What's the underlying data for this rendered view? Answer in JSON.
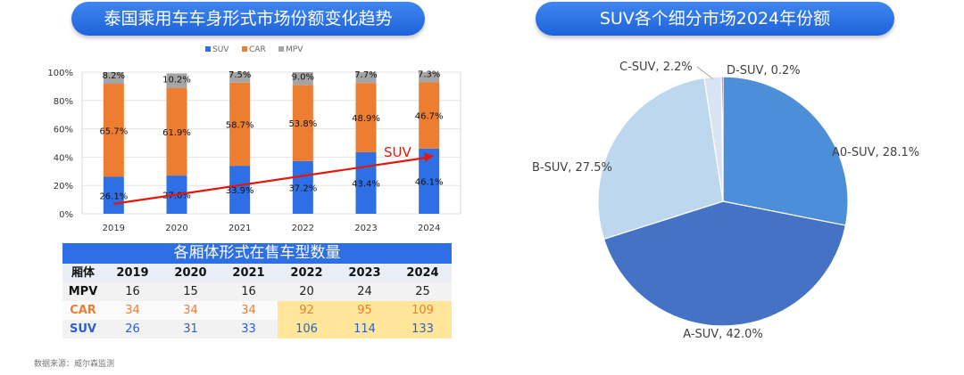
{
  "titles": {
    "left": "泰国乘用车车身形式市场份额变化趋势",
    "right": "SUV各个细分市场2024年份额"
  },
  "chart_data": [
    {
      "type": "bar",
      "stacked": true,
      "categories": [
        "2019",
        "2020",
        "2021",
        "2022",
        "2023",
        "2024"
      ],
      "series": [
        {
          "name": "SUV",
          "values": [
            26.1,
            27.0,
            33.9,
            37.2,
            43.4,
            46.1
          ],
          "labels": [
            "26.1%",
            "27.0%",
            "33.9%",
            "37.2%",
            "43.4%",
            "46.1%"
          ],
          "color": "#2f6fe6"
        },
        {
          "name": "CAR",
          "values": [
            65.7,
            61.9,
            58.7,
            53.8,
            48.9,
            46.7
          ],
          "labels": [
            "65.7%",
            "61.9%",
            "58.7%",
            "53.8%",
            "48.9%",
            "46.7%"
          ],
          "color": "#ed7d31"
        },
        {
          "name": "MPV",
          "values": [
            8.2,
            10.2,
            7.5,
            9.0,
            7.7,
            7.3
          ],
          "labels": [
            "8.2%",
            "10.2%",
            "7.5%",
            "9.0%",
            "7.7%",
            "7.3%"
          ],
          "color": "#a5a5a5"
        }
      ],
      "ylim": [
        0,
        100
      ],
      "yticks": [
        "0%",
        "20%",
        "40%",
        "60%",
        "80%",
        "100%"
      ],
      "legend": "top",
      "annotation": "SUV",
      "trend_arrow": {
        "from_category": "2019",
        "to_category": "2024",
        "from_value": 7,
        "to_value": 46,
        "color": "#e3170a"
      }
    },
    {
      "type": "pie",
      "slices": [
        {
          "label": "A0-SUV, 28.1%",
          "value": 28.1,
          "color": "#4c8fd8"
        },
        {
          "label": "A-SUV, 42.0%",
          "value": 42.0,
          "color": "#4472c4"
        },
        {
          "label": "B-SUV, 27.5%",
          "value": 27.5,
          "color": "#bdd7ee"
        },
        {
          "label": "C-SUV, 2.2%",
          "value": 2.2,
          "color": "#dae3f3"
        },
        {
          "label": "D-SUV, 0.2%",
          "value": 0.2,
          "color": "#1f3864"
        }
      ]
    }
  ],
  "table": {
    "title": "各厢体形式在售车型数量",
    "headers": [
      "厢体",
      "2019",
      "2020",
      "2021",
      "2022",
      "2023",
      "2024"
    ],
    "rows": [
      {
        "label": "MPV",
        "values": [
          "16",
          "15",
          "16",
          "20",
          "24",
          "25"
        ]
      },
      {
        "label": "CAR",
        "values": [
          "34",
          "34",
          "34",
          "92",
          "95",
          "109"
        ]
      },
      {
        "label": "SUV",
        "values": [
          "26",
          "31",
          "33",
          "106",
          "114",
          "133"
        ]
      }
    ],
    "highlight_color": "#ffe699"
  },
  "source": "数据来源：威尔森监测"
}
